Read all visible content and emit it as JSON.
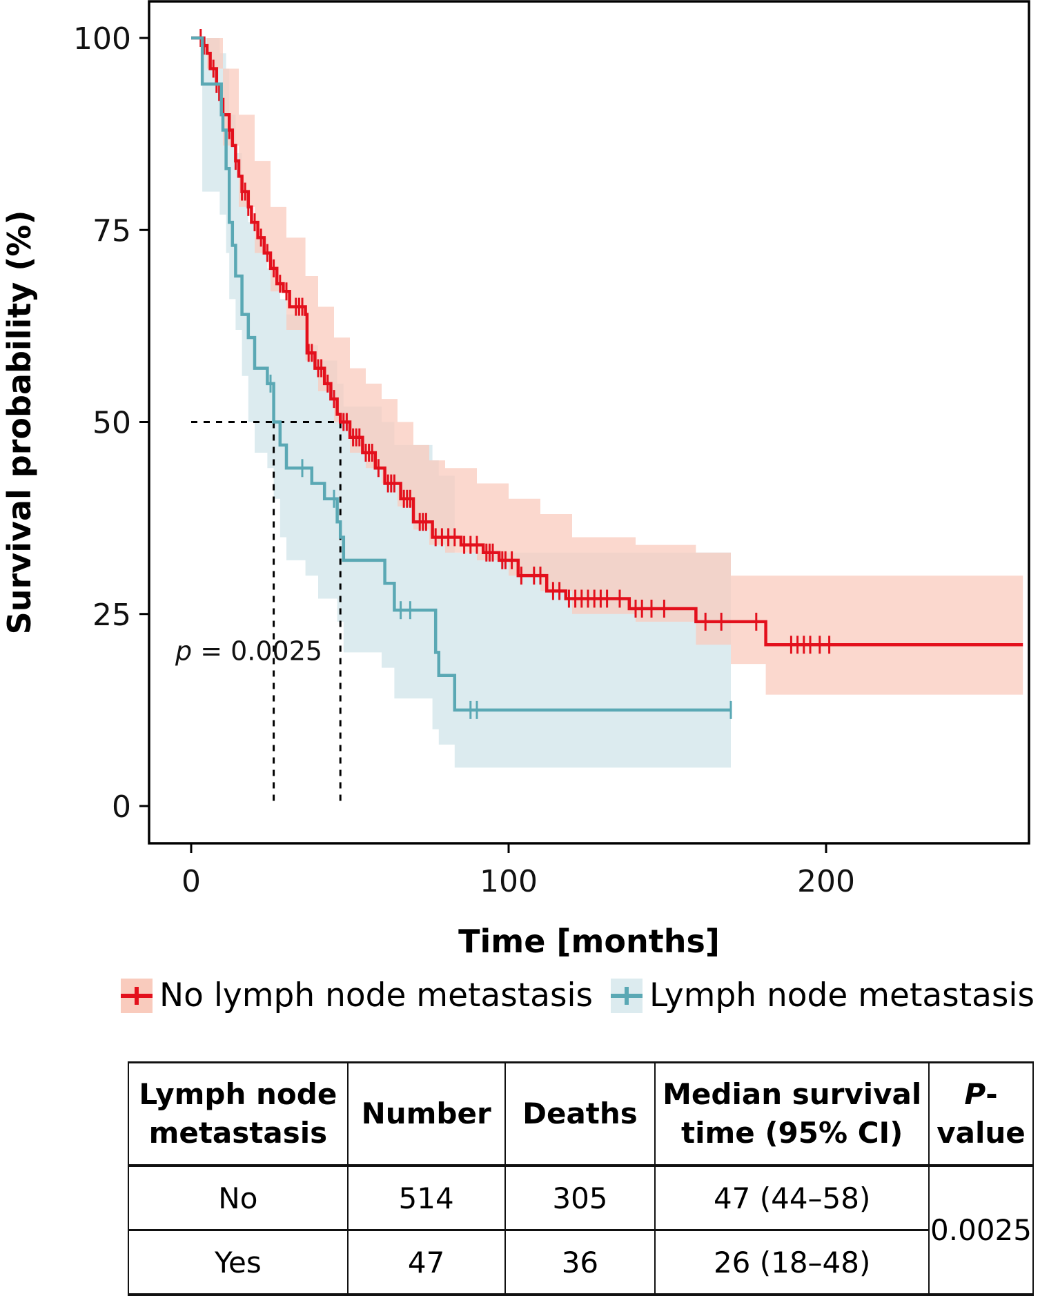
{
  "chart_data": {
    "type": "line",
    "subtype": "kaplan-meier",
    "title": "",
    "xlabel": "Time [months]",
    "ylabel": "Survival probability (%)",
    "xlim": [
      -13,
      263
    ],
    "ylim": [
      -9,
      105
    ],
    "x_ticks": [
      0,
      100,
      200
    ],
    "y_ticks": [
      0,
      25,
      50,
      75,
      100
    ],
    "grid": false,
    "annotation": {
      "text_prefix": "p",
      "text_value": " = 0.0025",
      "x": -5,
      "y": 19
    },
    "median_lines": {
      "y": 50,
      "x_values": [
        26,
        47
      ]
    },
    "legend": {
      "position": "bottom",
      "entries": [
        "No lymph node metastasis",
        "Lymph node metastasis"
      ]
    },
    "series": [
      {
        "name": "No lymph node metastasis",
        "color": "#e3101c",
        "ci_color": "#f9cbbd",
        "steps": [
          [
            0,
            100
          ],
          [
            4,
            99
          ],
          [
            5,
            98
          ],
          [
            6,
            96
          ],
          [
            8,
            94
          ],
          [
            9,
            92
          ],
          [
            10,
            90
          ],
          [
            12,
            88
          ],
          [
            13,
            86
          ],
          [
            14,
            84
          ],
          [
            15,
            82
          ],
          [
            16,
            80
          ],
          [
            18,
            78
          ],
          [
            19,
            76
          ],
          [
            21,
            74
          ],
          [
            23,
            72
          ],
          [
            25,
            70
          ],
          [
            27,
            68
          ],
          [
            29,
            67
          ],
          [
            31,
            65
          ],
          [
            36,
            64
          ],
          [
            36.5,
            59
          ],
          [
            39,
            57
          ],
          [
            42,
            55
          ],
          [
            44,
            53
          ],
          [
            46,
            51
          ],
          [
            47,
            50
          ],
          [
            50,
            48
          ],
          [
            54,
            46
          ],
          [
            58,
            44
          ],
          [
            61,
            42
          ],
          [
            66,
            40
          ],
          [
            70,
            37
          ],
          [
            76,
            35
          ],
          [
            85,
            34
          ],
          [
            92,
            33
          ],
          [
            97,
            32
          ],
          [
            103,
            30
          ],
          [
            112,
            28
          ],
          [
            118,
            27
          ],
          [
            138,
            25.7
          ],
          [
            159,
            24
          ],
          [
            181,
            21
          ],
          [
            262,
            21
          ]
        ],
        "ci_steps": [
          [
            0,
            100,
            100
          ],
          [
            5,
            100,
            96
          ],
          [
            10,
            96,
            86
          ],
          [
            15,
            90,
            78
          ],
          [
            20,
            84,
            72
          ],
          [
            25,
            78,
            67
          ],
          [
            30,
            74,
            62
          ],
          [
            36,
            69,
            58
          ],
          [
            40,
            65,
            54
          ],
          [
            45,
            61,
            50
          ],
          [
            50,
            57,
            46
          ],
          [
            55,
            55,
            44
          ],
          [
            60,
            53,
            42
          ],
          [
            65,
            50,
            39
          ],
          [
            70,
            47,
            36
          ],
          [
            75,
            45,
            34
          ],
          [
            80,
            44,
            33
          ],
          [
            90,
            42,
            32
          ],
          [
            100,
            40,
            30
          ],
          [
            110,
            38,
            28
          ],
          [
            120,
            35,
            25
          ],
          [
            140,
            34,
            24
          ],
          [
            159,
            33,
            21
          ],
          [
            170,
            30,
            18.5
          ],
          [
            181,
            30,
            14.5
          ],
          [
            262,
            30,
            14.5
          ]
        ],
        "censored": [
          3,
          4,
          7,
          8,
          10,
          12,
          14,
          16,
          17,
          18,
          20,
          22,
          24,
          26,
          28,
          30,
          33,
          34,
          35,
          37,
          38,
          40,
          41,
          43,
          45,
          48,
          49,
          51,
          52,
          53,
          55,
          56,
          57,
          59,
          62,
          63,
          64,
          67,
          68,
          69,
          72,
          73,
          74,
          77,
          79,
          81,
          83,
          86,
          88,
          90,
          93,
          94,
          95,
          98,
          99,
          101,
          104,
          108,
          110,
          114,
          116,
          119,
          121,
          123,
          125,
          127,
          129,
          131,
          135,
          140,
          142,
          145,
          149,
          162,
          167,
          178,
          189,
          191,
          193,
          195,
          198,
          201
        ]
      },
      {
        "name": "Lymph node metastasis",
        "color": "#5aa8b4",
        "ci_color": "#dcebef",
        "steps": [
          [
            0,
            100
          ],
          [
            3.5,
            94
          ],
          [
            9,
            94
          ],
          [
            9.5,
            90
          ],
          [
            10,
            88
          ],
          [
            11,
            83
          ],
          [
            12,
            76
          ],
          [
            13,
            73
          ],
          [
            14,
            69
          ],
          [
            16,
            64
          ],
          [
            18,
            61
          ],
          [
            20,
            57
          ],
          [
            24,
            55
          ],
          [
            26,
            50
          ],
          [
            28,
            47
          ],
          [
            30,
            44
          ],
          [
            36,
            44
          ],
          [
            38,
            42
          ],
          [
            42,
            40
          ],
          [
            46,
            37
          ],
          [
            47,
            35
          ],
          [
            48,
            32
          ],
          [
            60,
            32
          ],
          [
            61,
            29
          ],
          [
            64,
            25.5
          ],
          [
            76,
            25.5
          ],
          [
            77,
            20
          ],
          [
            78,
            17
          ],
          [
            83,
            12.5
          ],
          [
            170,
            12.5
          ]
        ],
        "ci_steps": [
          [
            0,
            100,
            100
          ],
          [
            3.5,
            100,
            80
          ],
          [
            9,
            98,
            77
          ],
          [
            11,
            96,
            72
          ],
          [
            12,
            90,
            66
          ],
          [
            14,
            85,
            62
          ],
          [
            16,
            80,
            56
          ],
          [
            18,
            76,
            50
          ],
          [
            20,
            74,
            46
          ],
          [
            24,
            70,
            44
          ],
          [
            26,
            68,
            40
          ],
          [
            28,
            66,
            35
          ],
          [
            30,
            64,
            32
          ],
          [
            36,
            60,
            30
          ],
          [
            40,
            58,
            27
          ],
          [
            46,
            55,
            24
          ],
          [
            48,
            52,
            20
          ],
          [
            60,
            50,
            18
          ],
          [
            64,
            47,
            14
          ],
          [
            76,
            45,
            10
          ],
          [
            78,
            43,
            8
          ],
          [
            83,
            33,
            5
          ],
          [
            170,
            33,
            5
          ]
        ],
        "censored": [
          25,
          35,
          45,
          66,
          69,
          88,
          90,
          170
        ]
      }
    ]
  },
  "table": {
    "headers": [
      "Lymph node\nmetastasis",
      "Number",
      "Deaths",
      "Median survival\ntime (95% CI)",
      "-value"
    ],
    "header_p_italic": "P",
    "rows": [
      {
        "group": "No",
        "number": "514",
        "deaths": "305",
        "median": "47 (44–58)"
      },
      {
        "group": "Yes",
        "number": "47",
        "deaths": "36",
        "median": "26 (18–48)"
      }
    ],
    "p_value": "0.0025"
  }
}
